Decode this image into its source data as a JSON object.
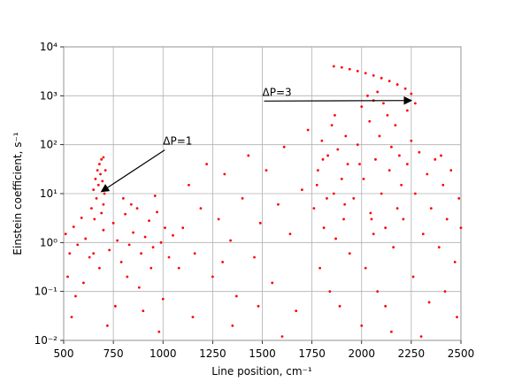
{
  "chart_data": {
    "type": "scatter",
    "xlabel": "Line position, cm⁻¹",
    "ylabel": "Einstein coefficient, s⁻¹",
    "xlim": [
      500,
      2500
    ],
    "xticks": [
      500,
      750,
      1000,
      1250,
      1500,
      1750,
      2000,
      2250,
      2500
    ],
    "ylim": [
      0.01,
      10000
    ],
    "log_y": true,
    "yticks": [
      {
        "value": 0.01,
        "label": "10⁻²"
      },
      {
        "value": 0.1,
        "label": "10⁻¹"
      },
      {
        "value": 1,
        "label": "10⁰"
      },
      {
        "value": 10,
        "label": "10¹"
      },
      {
        "value": 100,
        "label": "10²"
      },
      {
        "value": 1000,
        "label": "10³"
      },
      {
        "value": 10000,
        "label": "10⁴"
      }
    ],
    "grid": true,
    "color": "#ff0000",
    "annotations": [
      {
        "text": "ΔP=1",
        "xy": [
          690,
          11
        ],
        "xytext": [
          1000,
          100
        ]
      },
      {
        "text": "ΔP=3",
        "xy": [
          2250,
          800
        ],
        "xytext": [
          1500,
          1000
        ]
      }
    ],
    "x": [
      640,
      650,
      660,
      665,
      670,
      675,
      680,
      685,
      690,
      695,
      700,
      705,
      655,
      700,
      690,
      710,
      510,
      530,
      550,
      570,
      590,
      610,
      630,
      700,
      730,
      750,
      770,
      790,
      810,
      830,
      850,
      870,
      890,
      910,
      930,
      950,
      970,
      990,
      1010,
      1030,
      1050,
      520,
      560,
      600,
      680,
      760,
      820,
      880,
      940,
      1000,
      540,
      720,
      900,
      980,
      650,
      800,
      960,
      840,
      1080,
      1100,
      1130,
      1160,
      1190,
      1220,
      1250,
      1280,
      1310,
      1340,
      1370,
      1400,
      1430,
      1460,
      1490,
      1520,
      1550,
      1580,
      1610,
      1640,
      1670,
      1700,
      1730,
      1150,
      1350,
      1600,
      1480,
      1300,
      1760,
      1780,
      1800,
      1810,
      1830,
      1850,
      1860,
      1870,
      1880,
      1900,
      1910,
      1920,
      1930,
      1940,
      1790,
      1840,
      1890,
      1775,
      1825,
      1865,
      1915,
      1805,
      1860,
      1900,
      1940,
      1980,
      2020,
      2060,
      2100,
      2140,
      2180,
      2220,
      2250,
      2270,
      2230,
      1960,
      1980,
      2000,
      2010,
      2030,
      2040,
      2050,
      2060,
      2070,
      2080,
      2090,
      2100,
      2110,
      2120,
      2130,
      2140,
      2150,
      2160,
      2170,
      2180,
      2190,
      2200,
      2020,
      2080,
      2120,
      2000,
      2150,
      2060,
      1990,
      2045,
      2210,
      2230,
      2250,
      2270,
      2290,
      2310,
      2330,
      2350,
      2370,
      2390,
      2410,
      2430,
      2450,
      2470,
      2490,
      2260,
      2340,
      2420,
      2480,
      2300,
      2400,
      2500
    ],
    "y": [
      5,
      12,
      20,
      8,
      30,
      15,
      40,
      25,
      50,
      18,
      55,
      10,
      3,
      6,
      4,
      30,
      1.5,
      0.6,
      2.1,
      0.9,
      3.2,
      1.2,
      0.5,
      1.8,
      0.7,
      2.5,
      1.1,
      0.4,
      3.8,
      0.9,
      1.6,
      5,
      0.6,
      1.3,
      2.8,
      0.8,
      4.2,
      1.0,
      2.0,
      0.5,
      1.4,
      0.2,
      0.08,
      0.15,
      0.3,
      0.05,
      0.2,
      0.12,
      0.3,
      0.07,
      0.03,
      0.02,
      0.04,
      0.015,
      0.6,
      8,
      9,
      6,
      0.3,
      2,
      15,
      0.6,
      5,
      40,
      0.2,
      3,
      25,
      1.1,
      0.08,
      8,
      60,
      0.5,
      2.5,
      30,
      0.15,
      6,
      90,
      1.5,
      0.04,
      12,
      200,
      0.03,
      0.02,
      0.012,
      0.05,
      0.4,
      5,
      30,
      120,
      2,
      60,
      250,
      10,
      1.2,
      80,
      20,
      3,
      150,
      40,
      0.6,
      0.3,
      0.1,
      0.05,
      15,
      8,
      400,
      6,
      50,
      4000,
      3800,
      3500,
      3200,
      2900,
      2600,
      2300,
      2000,
      1700,
      1400,
      1100,
      700,
      500,
      8,
      100,
      600,
      20,
      1000,
      300,
      3,
      800,
      50,
      1200,
      150,
      10,
      700,
      2,
      400,
      30,
      90,
      0.8,
      250,
      5,
      60,
      15,
      0.3,
      0.1,
      0.05,
      0.02,
      0.015,
      1.5,
      40,
      4,
      3,
      40,
      120,
      10,
      70,
      1.5,
      25,
      5,
      50,
      0.8,
      15,
      3,
      30,
      0.4,
      8,
      0.2,
      0.06,
      0.1,
      0.03,
      0.012,
      60,
      2
    ]
  }
}
